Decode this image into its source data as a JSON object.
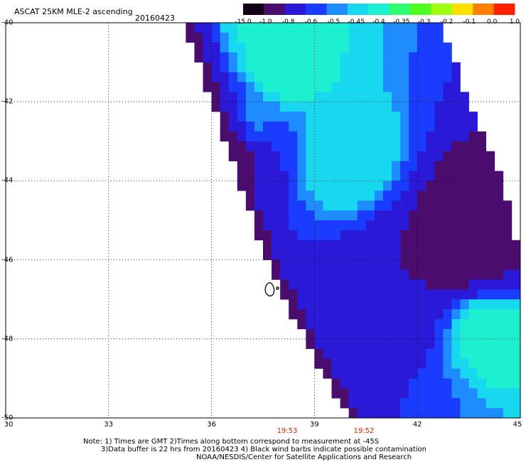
{
  "title": "ASCAT 25KM MLE-2 ascending",
  "date": "20160423",
  "colorbar": {
    "labels": [
      "-15.0",
      "-1.0",
      "-0.8",
      "-0.6",
      "-0.5",
      "-0.45",
      "-0.4",
      "-0.35",
      "-0.3",
      "-0.2",
      "-0.1",
      "0.0",
      "1.0"
    ],
    "colors": [
      "#140014",
      "#4a0d6e",
      "#2a1ad8",
      "#1a3cff",
      "#1e8cff",
      "#18d8f0",
      "#1cf0d0",
      "#30ff70",
      "#50ff20",
      "#a0ff10",
      "#ffe000",
      "#ff8000",
      "#ff2000"
    ]
  },
  "x_axis": {
    "ticks": [
      "30",
      "33",
      "36",
      "39",
      "42",
      "45"
    ]
  },
  "y_axis": {
    "ticks": [
      "-40",
      "-42",
      "-44",
      "-46",
      "-48",
      "-50"
    ]
  },
  "pass_times": [
    "19:53",
    "19:52"
  ],
  "notes": {
    "line1": "Note: 1) Times are GMT 2)Times along bottom correspond to measurement at -45S",
    "line2": "3)Data buffer is 22 hrs from 20160423 4) Black wind barbs indicate possible contamination",
    "line3": "NOAA/NESDIS/Center for Satellite Applications and Research"
  },
  "chart_data": {
    "type": "heatmap",
    "title": "ASCAT 25KM MLE-2 ascending",
    "subtitle": "20160423",
    "xlim": [
      30,
      45
    ],
    "ylim": [
      -50,
      -40
    ],
    "grid": true,
    "value_scale": [
      "-15.0",
      "-1.0",
      "-0.8",
      "-0.6",
      "-0.5",
      "-0.45",
      "-0.4",
      "-0.35",
      "-0.3",
      "-0.2",
      "-0.1",
      "0.0",
      "1.0"
    ],
    "swath_edges": [
      {
        "lat": -40.0,
        "lon_min": 35.2,
        "lon_max": 42.7
      },
      {
        "lat": -42.0,
        "lon_min": 36.0,
        "lon_max": 43.5
      },
      {
        "lat": -44.0,
        "lon_min": 36.8,
        "lon_max": 44.5
      },
      {
        "lat": -46.0,
        "lon_min": 37.6,
        "lon_max": 45.0
      },
      {
        "lat": -48.0,
        "lon_min": 38.7,
        "lon_max": 45.0
      },
      {
        "lat": -50.0,
        "lon_min": 40.0,
        "lon_max": 45.0
      }
    ],
    "regions": [
      {
        "lat": -41.0,
        "lon": 38.0,
        "value": -0.35
      },
      {
        "lat": -42.5,
        "lon": 37.0,
        "value": -0.45
      },
      {
        "lat": -43.0,
        "lon": 36.5,
        "value": -1.0
      },
      {
        "lat": -43.5,
        "lon": 40.0,
        "value": -0.4
      },
      {
        "lat": -45.5,
        "lon": 43.5,
        "value": -1.0
      },
      {
        "lat": -46.5,
        "lon": 41.5,
        "value": -0.8
      },
      {
        "lat": -48.5,
        "lon": 41.0,
        "value": -0.8
      },
      {
        "lat": -48.0,
        "lon": 44.0,
        "value": -0.35
      },
      {
        "lat": -49.5,
        "lon": 42.5,
        "value": -0.5
      }
    ]
  }
}
